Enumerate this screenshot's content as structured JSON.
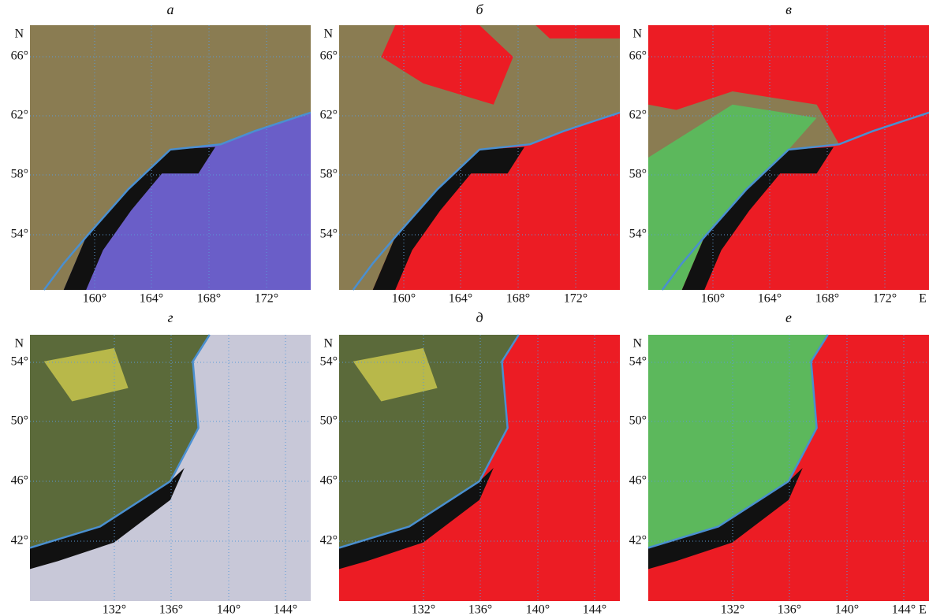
{
  "panels": [
    {
      "label": "а",
      "north": "N",
      "lat_labels": [
        "66°",
        "62°",
        "58°",
        "54°"
      ],
      "lon_labels": [
        "160°",
        "164°",
        "168°",
        "172°"
      ]
    },
    {
      "label": "б",
      "north": "N",
      "lat_labels": [
        "66°",
        "62°",
        "58°",
        "54°"
      ],
      "lon_labels": [
        "160°",
        "164°",
        "168°",
        "172°"
      ]
    },
    {
      "label": "в",
      "north": "N",
      "lat_labels": [
        "66°",
        "62°",
        "58°",
        "54°"
      ],
      "lon_labels": [
        "160°",
        "164°",
        "168°",
        "172°"
      ],
      "east": "E"
    },
    {
      "label": "г",
      "north": "N",
      "lat_labels": [
        "54°",
        "50°",
        "46°",
        "42°"
      ],
      "lon_labels": [
        "132°",
        "136°",
        "140°",
        "144°"
      ]
    },
    {
      "label": "д",
      "north": "N",
      "lat_labels": [
        "54°",
        "50°",
        "46°",
        "42°"
      ],
      "lon_labels": [
        "132°",
        "136°",
        "140°",
        "144°"
      ]
    },
    {
      "label": "е",
      "north": "N",
      "lat_labels": [
        "54°",
        "50°",
        "46°",
        "42°"
      ],
      "lon_labels": [
        "132°",
        "136°",
        "140°",
        "144°"
      ],
      "east": "E"
    }
  ]
}
